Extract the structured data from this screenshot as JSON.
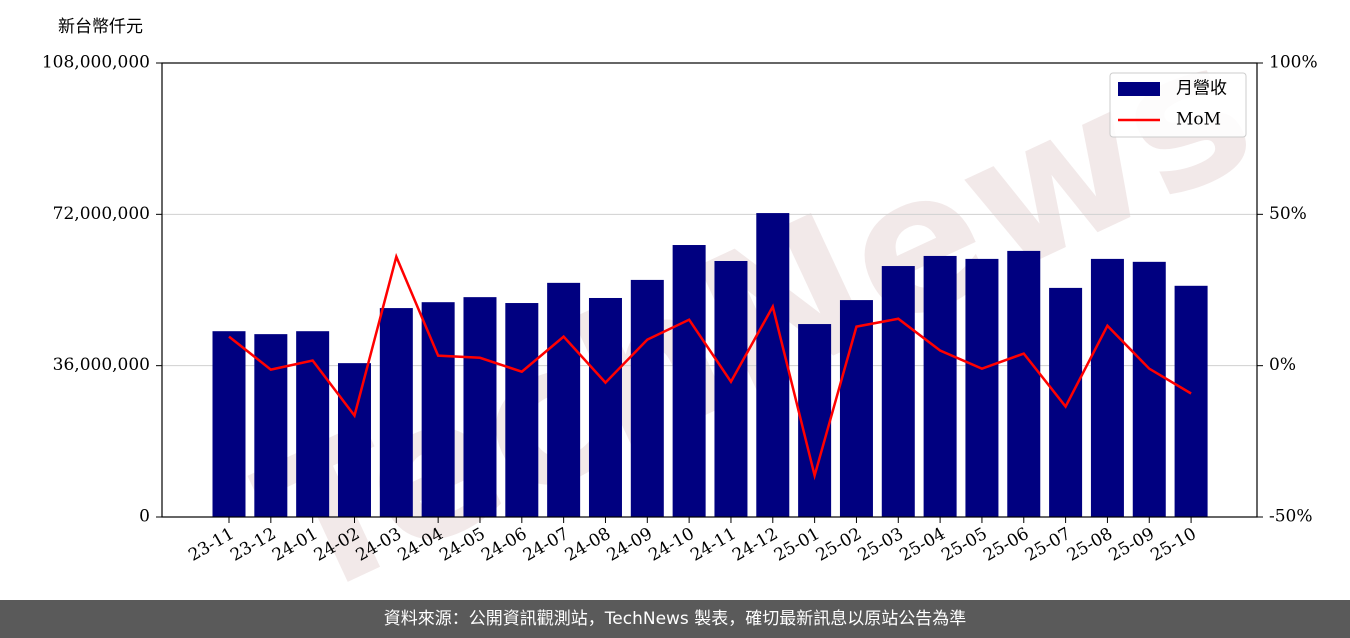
{
  "chart_data": {
    "type": "bar",
    "y_label": "新台幣仟元",
    "watermark": "TechNews",
    "categories": [
      "23-11",
      "23-12",
      "24-01",
      "24-02",
      "24-03",
      "24-04",
      "24-05",
      "24-06",
      "24-07",
      "24-08",
      "24-09",
      "24-10",
      "24-11",
      "24-12",
      "25-01",
      "25-02",
      "25-03",
      "25-04",
      "25-05",
      "25-06",
      "25-07",
      "25-08",
      "25-09",
      "25-10"
    ],
    "series": [
      {
        "name": "月營收",
        "type": "bar",
        "color": "#000080",
        "values": [
          44200000,
          43500000,
          44200000,
          36600000,
          49700000,
          51100000,
          52300000,
          50900000,
          55700000,
          52100000,
          56400000,
          64700000,
          60900000,
          72300000,
          45900000,
          51600000,
          59700000,
          62100000,
          61400000,
          63300000,
          54500000,
          61400000,
          60700000,
          55000000
        ]
      },
      {
        "name": "MoM",
        "type": "line",
        "axis": "y2",
        "color": "#ff0000",
        "values": [
          9.6,
          -1.3,
          1.7,
          -16.5,
          36,
          3.3,
          2.6,
          -2,
          9.6,
          -5.6,
          8.6,
          15.2,
          -5.3,
          19.5,
          -36.3,
          12.9,
          15.5,
          5,
          -1,
          4,
          -13.5,
          13.2,
          -1,
          -9.2
        ]
      }
    ],
    "ylim": [
      0,
      108000000
    ],
    "yticks": [
      0,
      {
        "value": 36000000,
        "label": "36,000,000"
      },
      {
        "value": 72000000,
        "label": "72,000,000"
      },
      {
        "value": 108000000,
        "label": "108,000,000"
      }
    ],
    "y2lim": [
      -50,
      100
    ],
    "y2ticks": [
      {
        "value": -50,
        "label": "-50%"
      },
      {
        "value": 0,
        "label": "0%"
      },
      {
        "value": 50,
        "label": "50%"
      },
      {
        "value": 100,
        "label": "100%"
      }
    ],
    "grid": true,
    "legend": "upper right"
  },
  "footer": "資料來源：公開資訊觀測站，TechNews 製表，確切最新訊息以原站公告為準"
}
